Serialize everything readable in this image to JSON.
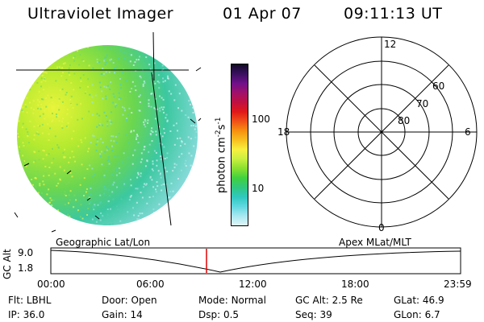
{
  "header": {
    "title": "Ultraviolet Imager",
    "date": "01 Apr 07",
    "time": "09:11:13 UT"
  },
  "colorbar": {
    "label_main": "photon cm",
    "label_sup1": "-2",
    "label_mid": "s",
    "label_sup2": "-1",
    "ticks": [
      {
        "value": 100,
        "label": "100"
      },
      {
        "value": 10,
        "label": "10"
      }
    ],
    "colors": [
      "#140a28",
      "#3a1060",
      "#70108a",
      "#a0106a",
      "#c01040",
      "#e01818",
      "#f05018",
      "#f89010",
      "#f8c020",
      "#f8f040",
      "#c8f040",
      "#88e030",
      "#40d040",
      "#30c880",
      "#30c8c0",
      "#60d8e0",
      "#a8e8f0",
      "#e0f4f8"
    ]
  },
  "polar_plot": {
    "mlt_labels": [
      {
        "label": "12",
        "pos": "top"
      },
      {
        "label": "18",
        "pos": "left"
      },
      {
        "label": "6",
        "pos": "right"
      },
      {
        "label": "0",
        "pos": "bottom"
      }
    ],
    "lat_labels": [
      "60",
      "70",
      "80"
    ]
  },
  "altitude_panel": {
    "left_title": "Geographic Lat/Lon",
    "right_title": "Apex MLat/MLT",
    "ylabel": "GC Alt",
    "ytick_top": "9.0",
    "ytick_bottom": "1.8",
    "xticks": [
      "00:00",
      "06:00",
      "12:00",
      "18:00",
      "23:59"
    ]
  },
  "status": {
    "col1": [
      {
        "key": "Flt:",
        "value": "LBHL"
      },
      {
        "key": "IP:",
        "value": "36.0"
      }
    ],
    "col2": [
      {
        "key": "Door:",
        "value": "Open"
      },
      {
        "key": "Gain:",
        "value": "14"
      }
    ],
    "col3": [
      {
        "key": "Mode:",
        "value": "Normal"
      },
      {
        "key": "Dsp:",
        "value": "0.5"
      }
    ],
    "col4": [
      {
        "key": "GC Alt:",
        "value": "2.5 Re"
      },
      {
        "key": "Seq:",
        "value": "39"
      }
    ],
    "col5": [
      {
        "key": "GLat:",
        "value": "46.9"
      },
      {
        "key": "GLon:",
        "value": "6.7"
      }
    ]
  },
  "colors": {
    "earth_bright": "#c8ee30",
    "earth_mid": "#60d060",
    "earth_dim": "#40c8b0",
    "marker": "#e00000"
  }
}
